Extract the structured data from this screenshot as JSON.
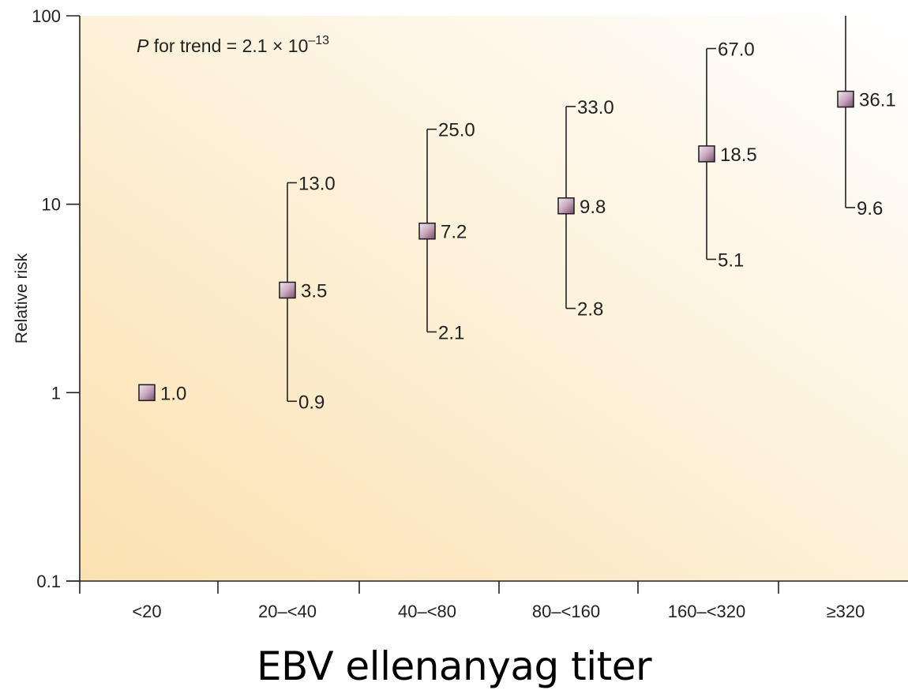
{
  "chart_data": {
    "type": "scatter",
    "xlabel": "EBV ellenanyag titer",
    "ylabel": "Relative risk",
    "yscale": "log",
    "ylim": [
      0.1,
      100
    ],
    "yticks": [
      "100",
      "10",
      "1",
      "0.1"
    ],
    "categories": [
      "<20",
      "20–<40",
      "40–<80",
      "80–<160",
      "160–<320",
      "≥320"
    ],
    "points": [
      {
        "category": "<20",
        "value": 1.0,
        "label": "1.0"
      },
      {
        "category": "20–<40",
        "value": 3.5,
        "label": "3.5",
        "upper": 13.0,
        "upper_label": "13.0",
        "lower": 0.9,
        "lower_label": "0.9"
      },
      {
        "category": "40–<80",
        "value": 7.2,
        "label": "7.2",
        "upper": 25.0,
        "upper_label": "25.0",
        "lower": 2.1,
        "lower_label": "2.1"
      },
      {
        "category": "80–<160",
        "value": 9.8,
        "label": "9.8",
        "upper": 33.0,
        "upper_label": "33.0",
        "lower": 2.8,
        "lower_label": "2.8"
      },
      {
        "category": "160–<320",
        "value": 18.5,
        "label": "18.5",
        "upper": 67.0,
        "upper_label": "67.0",
        "lower": 5.1,
        "lower_label": "5.1"
      },
      {
        "category": "≥320",
        "value": 36.1,
        "label": "36.1",
        "upper": 100,
        "lower": 9.6,
        "lower_label": "9.6"
      }
    ],
    "annotation": {
      "italic": "P",
      "text": " for trend = 2.1 × 10",
      "exponent": "–13"
    },
    "grid": false,
    "legend": "none"
  },
  "colors": {
    "background_light": "#ffffff",
    "background_warm": "#fbe1b0",
    "marker_light": "#f2e8f0",
    "marker_dark": "#7a4a6a",
    "axis": "#222222"
  }
}
